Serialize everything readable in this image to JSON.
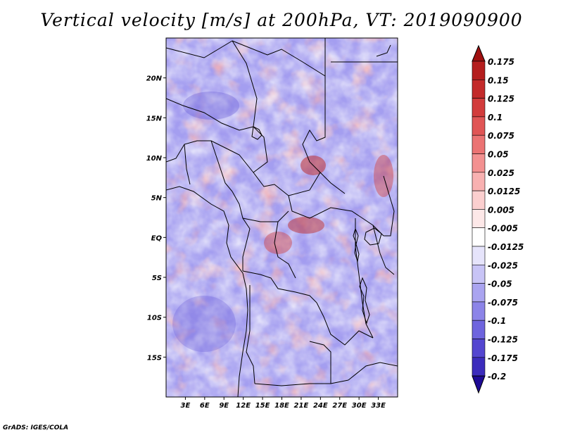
{
  "title": "Vertical velocity [m/s] at 200hPa, VT: 2019090900",
  "credit": "GrADS: IGES/COLA",
  "map": {
    "lon_range": [
      0,
      36
    ],
    "lat_range": [
      -20,
      25
    ],
    "x_ticks": [
      {
        "lon": 3,
        "label": "3E"
      },
      {
        "lon": 6,
        "label": "6E"
      },
      {
        "lon": 9,
        "label": "9E"
      },
      {
        "lon": 12,
        "label": "12E"
      },
      {
        "lon": 15,
        "label": "15E"
      },
      {
        "lon": 18,
        "label": "18E"
      },
      {
        "lon": 21,
        "label": "21E"
      },
      {
        "lon": 24,
        "label": "24E"
      },
      {
        "lon": 27,
        "label": "27E"
      },
      {
        "lon": 30,
        "label": "30E"
      },
      {
        "lon": 33,
        "label": "33E"
      }
    ],
    "y_ticks": [
      {
        "lat": 20,
        "label": "20N"
      },
      {
        "lat": 15,
        "label": "15N"
      },
      {
        "lat": 10,
        "label": "10N"
      },
      {
        "lat": 5,
        "label": "5N"
      },
      {
        "lat": 0,
        "label": "EQ"
      },
      {
        "lat": -5,
        "label": "5S"
      },
      {
        "lat": -10,
        "label": "10S"
      },
      {
        "lat": -15,
        "label": "15S"
      }
    ]
  },
  "colorbar": {
    "levels": [
      {
        "label": "0.175",
        "color": "#b41e1e"
      },
      {
        "label": "0.15",
        "color": "#c32a2a"
      },
      {
        "label": "0.125",
        "color": "#d23c3c"
      },
      {
        "label": "0.1",
        "color": "#e05555"
      },
      {
        "label": "0.075",
        "color": "#eb7373"
      },
      {
        "label": "0.05",
        "color": "#f39191"
      },
      {
        "label": "0.025",
        "color": "#f8b1b1"
      },
      {
        "label": "0.0125",
        "color": "#fbcfcf"
      },
      {
        "label": "0.005",
        "color": "#fde8e8"
      },
      {
        "label": "-0.005",
        "color": "#ffffff"
      },
      {
        "label": "-0.0125",
        "color": "#e6e4fb"
      },
      {
        "label": "-0.025",
        "color": "#c8c4f6"
      },
      {
        "label": "-0.05",
        "color": "#aaa4f0"
      },
      {
        "label": "-0.075",
        "color": "#8c84e8"
      },
      {
        "label": "-0.1",
        "color": "#6e64de"
      },
      {
        "label": "-0.125",
        "color": "#5446d0"
      },
      {
        "label": "-0.175",
        "color": "#3c2cbc"
      },
      {
        "label": "-0.2",
        "color": "#2a18a8"
      }
    ],
    "top_color": "#a01010",
    "bottom_color": "#1e0a96"
  }
}
